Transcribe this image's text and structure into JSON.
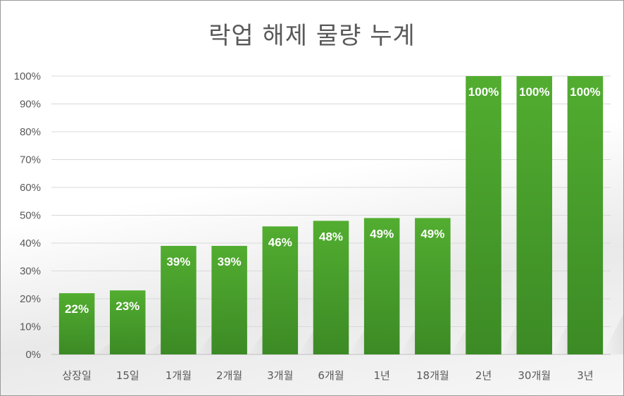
{
  "chart_data": {
    "type": "bar",
    "title": "락업 해제 물량 누계",
    "categories": [
      "상장일",
      "15일",
      "1개월",
      "2개월",
      "3개월",
      "6개월",
      "1년",
      "18개월",
      "2년",
      "30개월",
      "3년"
    ],
    "values": [
      22,
      23,
      39,
      39,
      46,
      48,
      49,
      49,
      100,
      100,
      100
    ],
    "data_labels": [
      "22%",
      "23%",
      "39%",
      "39%",
      "46%",
      "48%",
      "49%",
      "49%",
      "100%",
      "100%",
      "100%"
    ],
    "ylim": [
      0,
      100
    ],
    "y_ticks": [
      "0%",
      "10%",
      "20%",
      "30%",
      "40%",
      "50%",
      "60%",
      "70%",
      "80%",
      "90%",
      "100%"
    ],
    "grid": true,
    "legend": "none",
    "bar_color_top": "#52ad30",
    "bar_color_bottom": "#3c8a25"
  }
}
